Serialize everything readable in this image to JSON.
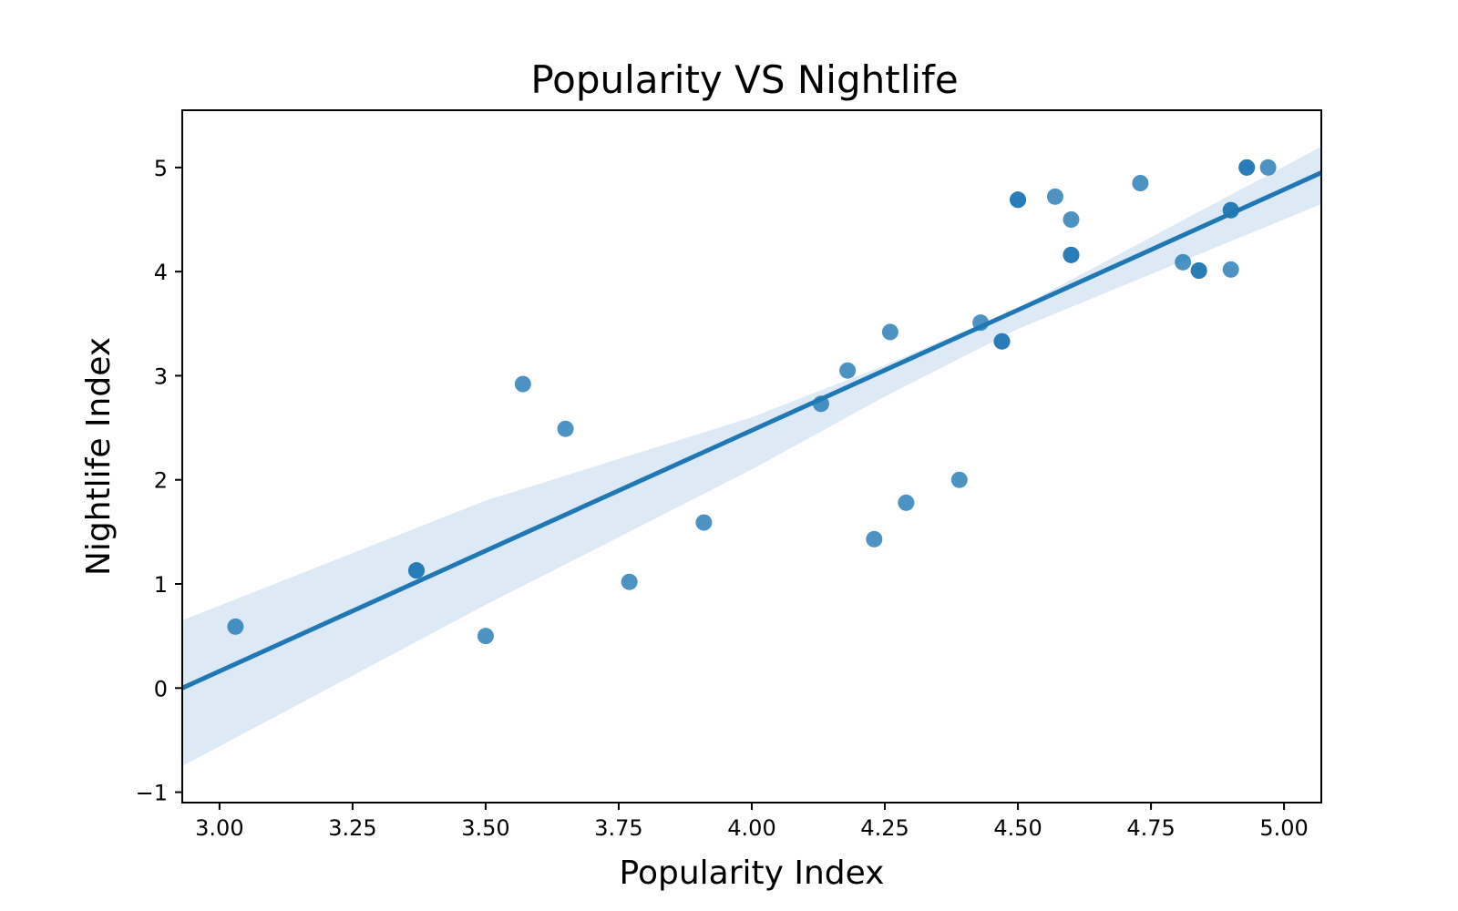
{
  "chart_data": {
    "type": "scatter",
    "title": "Popularity VS Nightlife",
    "xlabel": "Popularity Index",
    "ylabel": "Nightlife Index",
    "xlim": [
      2.93,
      5.07
    ],
    "ylim": [
      -1.1,
      5.55
    ],
    "x_ticks": [
      3.0,
      3.25,
      3.5,
      3.75,
      4.0,
      4.25,
      4.5,
      4.75,
      5.0
    ],
    "x_tick_labels": [
      "3.00",
      "3.25",
      "3.50",
      "3.75",
      "4.00",
      "4.25",
      "4.50",
      "4.75",
      "5.00"
    ],
    "y_ticks": [
      -1,
      0,
      1,
      2,
      3,
      4,
      5
    ],
    "y_tick_labels": [
      "−1",
      "0",
      "1",
      "2",
      "3",
      "4",
      "5"
    ],
    "grid": false,
    "colors": {
      "points": "#1f77b4",
      "line": "#1f77b4",
      "band": "#c6dbef"
    },
    "points": [
      {
        "x": 3.03,
        "y": 0.59
      },
      {
        "x": 3.37,
        "y": 1.13
      },
      {
        "x": 3.37,
        "y": 1.13
      },
      {
        "x": 3.5,
        "y": 0.5
      },
      {
        "x": 3.57,
        "y": 2.92
      },
      {
        "x": 3.65,
        "y": 2.49
      },
      {
        "x": 3.77,
        "y": 1.02
      },
      {
        "x": 3.91,
        "y": 1.59
      },
      {
        "x": 4.13,
        "y": 2.73
      },
      {
        "x": 4.18,
        "y": 3.05
      },
      {
        "x": 4.23,
        "y": 1.43
      },
      {
        "x": 4.26,
        "y": 3.42
      },
      {
        "x": 4.29,
        "y": 1.78
      },
      {
        "x": 4.39,
        "y": 2.0
      },
      {
        "x": 4.43,
        "y": 3.51
      },
      {
        "x": 4.47,
        "y": 3.33
      },
      {
        "x": 4.47,
        "y": 3.33
      },
      {
        "x": 4.5,
        "y": 4.69
      },
      {
        "x": 4.5,
        "y": 4.69
      },
      {
        "x": 4.57,
        "y": 4.72
      },
      {
        "x": 4.6,
        "y": 4.5
      },
      {
        "x": 4.6,
        "y": 4.16
      },
      {
        "x": 4.6,
        "y": 4.16
      },
      {
        "x": 4.73,
        "y": 4.85
      },
      {
        "x": 4.81,
        "y": 4.09
      },
      {
        "x": 4.84,
        "y": 4.01
      },
      {
        "x": 4.84,
        "y": 4.01
      },
      {
        "x": 4.9,
        "y": 4.59
      },
      {
        "x": 4.9,
        "y": 4.59
      },
      {
        "x": 4.9,
        "y": 4.02
      },
      {
        "x": 4.93,
        "y": 5.0
      },
      {
        "x": 4.93,
        "y": 5.0
      },
      {
        "x": 4.97,
        "y": 5.0
      }
    ],
    "regression_line": {
      "x": [
        2.93,
        5.07
      ],
      "y": [
        0.0,
        4.95
      ]
    },
    "confidence_band": {
      "x": [
        2.93,
        3.5,
        4.0,
        4.25,
        4.5,
        5.07
      ],
      "upper": [
        0.65,
        1.8,
        2.6,
        3.1,
        3.65,
        5.2
      ],
      "lower": [
        -0.75,
        0.8,
        2.1,
        2.8,
        3.45,
        4.65
      ]
    }
  }
}
